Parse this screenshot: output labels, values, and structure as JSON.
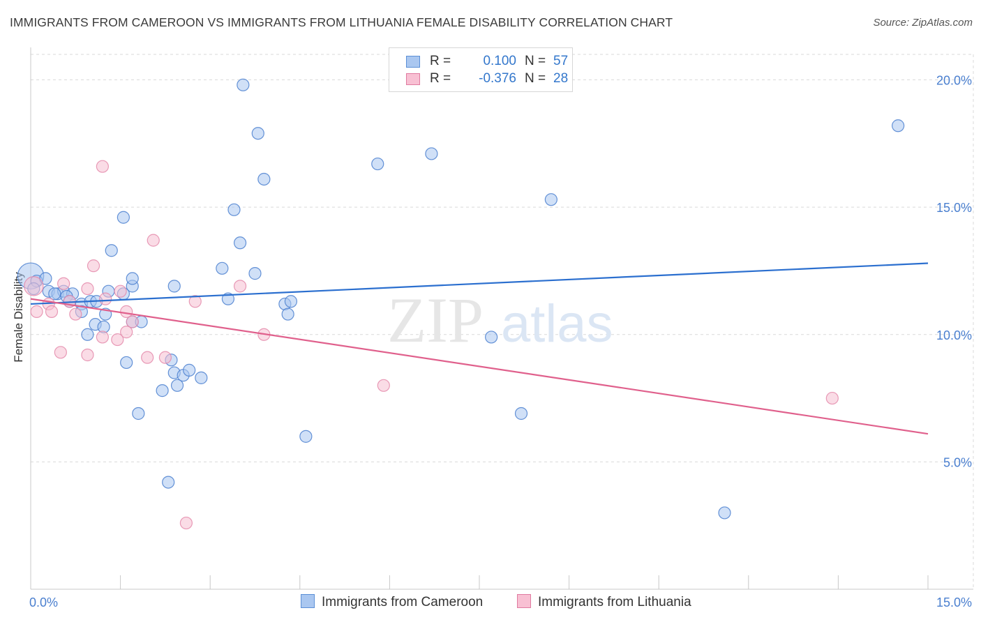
{
  "title": "IMMIGRANTS FROM CAMEROON VS IMMIGRANTS FROM LITHUANIA FEMALE DISABILITY CORRELATION CHART",
  "source": "Source: ZipAtlas.com",
  "watermark": {
    "zip": "ZIP",
    "atlas": "atlas"
  },
  "legend": {
    "rows": [
      {
        "r_label": "R =",
        "r_value": "0.100",
        "n_label": "N =",
        "n_value": "57",
        "color": "#aac7f0",
        "border": "#5b8fd6"
      },
      {
        "r_label": "R =",
        "r_value": "-0.376",
        "n_label": "N =",
        "n_value": "28",
        "color": "#f8c0d3",
        "border": "#e07aa0"
      }
    ]
  },
  "colors": {
    "blue_fill": "#aac7f0",
    "blue_edge": "#4a7fcf",
    "blue_line": "#2b6fcf",
    "pink_fill": "#f6bfd2",
    "pink_edge": "#e489aa",
    "pink_line": "#e0608c",
    "tick_text": "#4a7fcf",
    "grid": "#d9d9d9"
  },
  "chart_data": {
    "type": "scatter",
    "title": "IMMIGRANTS FROM CAMEROON VS IMMIGRANTS FROM LITHUANIA FEMALE DISABILITY CORRELATION CHART",
    "xlabel": "",
    "ylabel": "Female Disability",
    "xlim": [
      0,
      15
    ],
    "ylim": [
      0,
      21
    ],
    "x_tick_labels": [
      "0.0%",
      "15.0%"
    ],
    "y_ticks": [
      5,
      10,
      15,
      20
    ],
    "y_tick_labels": [
      "5.0%",
      "10.0%",
      "15.0%",
      "20.0%"
    ],
    "grid": true,
    "series": [
      {
        "name": "Immigrants from Cameroon",
        "points": [
          [
            0.0,
            12.3,
            2.2
          ],
          [
            0.1,
            12.1,
            1
          ],
          [
            0.25,
            12.2,
            1
          ],
          [
            0.05,
            11.8,
            1
          ],
          [
            0.3,
            11.7,
            1
          ],
          [
            0.45,
            11.6,
            1
          ],
          [
            0.55,
            11.7,
            1
          ],
          [
            0.7,
            11.6,
            1
          ],
          [
            0.6,
            11.5,
            1
          ],
          [
            0.4,
            11.6,
            1
          ],
          [
            0.65,
            11.3,
            1
          ],
          [
            0.85,
            11.2,
            1
          ],
          [
            1.0,
            11.3,
            1
          ],
          [
            1.1,
            11.3,
            1
          ],
          [
            0.85,
            10.9,
            1
          ],
          [
            1.3,
            11.7,
            1
          ],
          [
            1.55,
            11.6,
            1
          ],
          [
            1.7,
            11.9,
            1
          ],
          [
            1.25,
            10.8,
            1
          ],
          [
            1.08,
            10.4,
            1
          ],
          [
            1.22,
            10.3,
            1
          ],
          [
            1.7,
            10.5,
            1
          ],
          [
            1.85,
            10.5,
            1
          ],
          [
            0.95,
            10.0,
            1
          ],
          [
            1.35,
            13.3,
            1
          ],
          [
            1.55,
            14.6,
            1
          ],
          [
            1.7,
            12.2,
            1
          ],
          [
            2.4,
            11.9,
            1
          ],
          [
            3.2,
            12.6,
            1
          ],
          [
            3.3,
            11.4,
            1
          ],
          [
            3.5,
            13.6,
            1
          ],
          [
            3.4,
            14.9,
            1
          ],
          [
            3.75,
            12.4,
            1
          ],
          [
            3.9,
            16.1,
            1
          ],
          [
            3.8,
            17.9,
            1
          ],
          [
            3.55,
            19.8,
            1
          ],
          [
            4.25,
            11.2,
            1
          ],
          [
            4.35,
            11.3,
            1
          ],
          [
            4.3,
            10.8,
            1
          ],
          [
            1.6,
            8.9,
            1
          ],
          [
            2.35,
            9.0,
            1
          ],
          [
            2.4,
            8.5,
            1
          ],
          [
            2.55,
            8.4,
            1
          ],
          [
            2.85,
            8.3,
            1
          ],
          [
            2.45,
            8.0,
            1
          ],
          [
            2.65,
            8.6,
            1
          ],
          [
            2.2,
            7.8,
            1
          ],
          [
            1.8,
            6.9,
            1
          ],
          [
            2.3,
            4.2,
            1
          ],
          [
            4.6,
            6.0,
            1
          ],
          [
            5.8,
            16.7,
            1
          ],
          [
            6.7,
            17.1,
            1
          ],
          [
            7.7,
            9.9,
            1
          ],
          [
            8.7,
            15.3,
            1
          ],
          [
            8.2,
            6.9,
            1
          ],
          [
            11.6,
            3.0,
            1
          ],
          [
            14.5,
            18.2,
            1
          ]
        ]
      },
      {
        "name": "Immigrants from Lithuania",
        "points": [
          [
            0.05,
            11.9,
            1.6
          ],
          [
            0.1,
            10.9,
            1
          ],
          [
            0.3,
            11.2,
            1
          ],
          [
            0.35,
            10.9,
            1
          ],
          [
            0.55,
            12.0,
            1
          ],
          [
            0.65,
            11.3,
            1
          ],
          [
            0.75,
            10.8,
            1
          ],
          [
            0.95,
            11.8,
            1
          ],
          [
            1.05,
            12.7,
            1
          ],
          [
            1.25,
            11.4,
            1
          ],
          [
            1.5,
            11.7,
            1
          ],
          [
            1.6,
            10.9,
            1
          ],
          [
            1.7,
            10.5,
            1
          ],
          [
            1.6,
            10.1,
            1
          ],
          [
            1.45,
            9.8,
            1
          ],
          [
            1.2,
            9.9,
            1
          ],
          [
            0.5,
            9.3,
            1
          ],
          [
            0.95,
            9.2,
            1
          ],
          [
            1.95,
            9.1,
            1
          ],
          [
            2.25,
            9.1,
            1
          ],
          [
            2.05,
            13.7,
            1
          ],
          [
            1.2,
            16.6,
            1
          ],
          [
            2.75,
            11.3,
            1
          ],
          [
            3.5,
            11.9,
            1
          ],
          [
            3.9,
            10.0,
            1
          ],
          [
            5.9,
            8.0,
            1
          ],
          [
            2.6,
            2.6,
            1
          ],
          [
            13.4,
            7.5,
            1
          ]
        ]
      }
    ],
    "trend_lines": [
      {
        "series": "Immigrants from Cameroon",
        "x": [
          0,
          15
        ],
        "y": [
          11.2,
          12.8
        ]
      },
      {
        "series": "Immigrants from Lithuania",
        "x": [
          0,
          15
        ],
        "y": [
          11.4,
          6.1
        ]
      }
    ]
  }
}
